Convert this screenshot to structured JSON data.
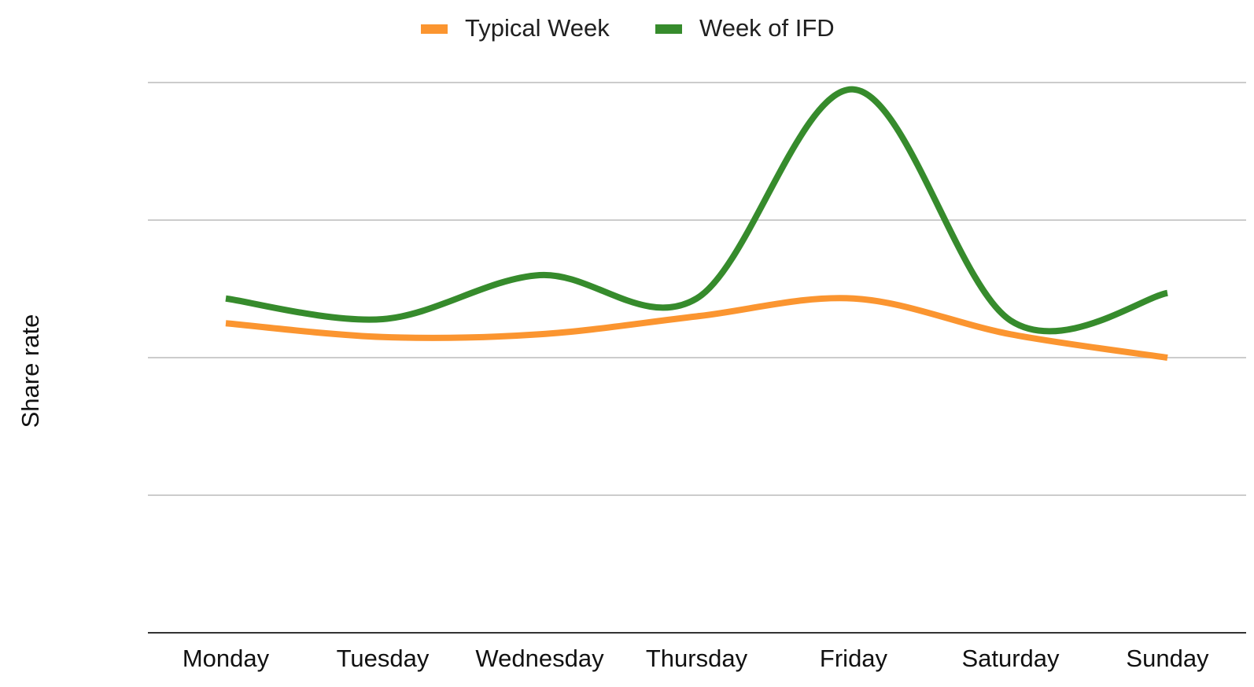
{
  "chart_data": {
    "type": "line",
    "title": "",
    "xlabel": "",
    "ylabel": "Share rate",
    "categories": [
      "Monday",
      "Tuesday",
      "Wednesday",
      "Thursday",
      "Friday",
      "Saturday",
      "Sunday"
    ],
    "series": [
      {
        "name": "Typical Week",
        "color": "#fb9530",
        "values": [
          1.25,
          1.15,
          1.17,
          1.3,
          1.43,
          1.17,
          1.0
        ]
      },
      {
        "name": "Week of IFD",
        "color": "#368b2c",
        "values": [
          1.43,
          1.28,
          1.6,
          1.43,
          2.95,
          1.27,
          1.47
        ]
      }
    ],
    "ylim": [
      -1,
      3
    ],
    "y_gridlines": [
      0,
      1,
      2,
      3
    ],
    "y_tick_labels_shown": false,
    "grid": true,
    "legend_position": "top-center",
    "smooth": true
  }
}
